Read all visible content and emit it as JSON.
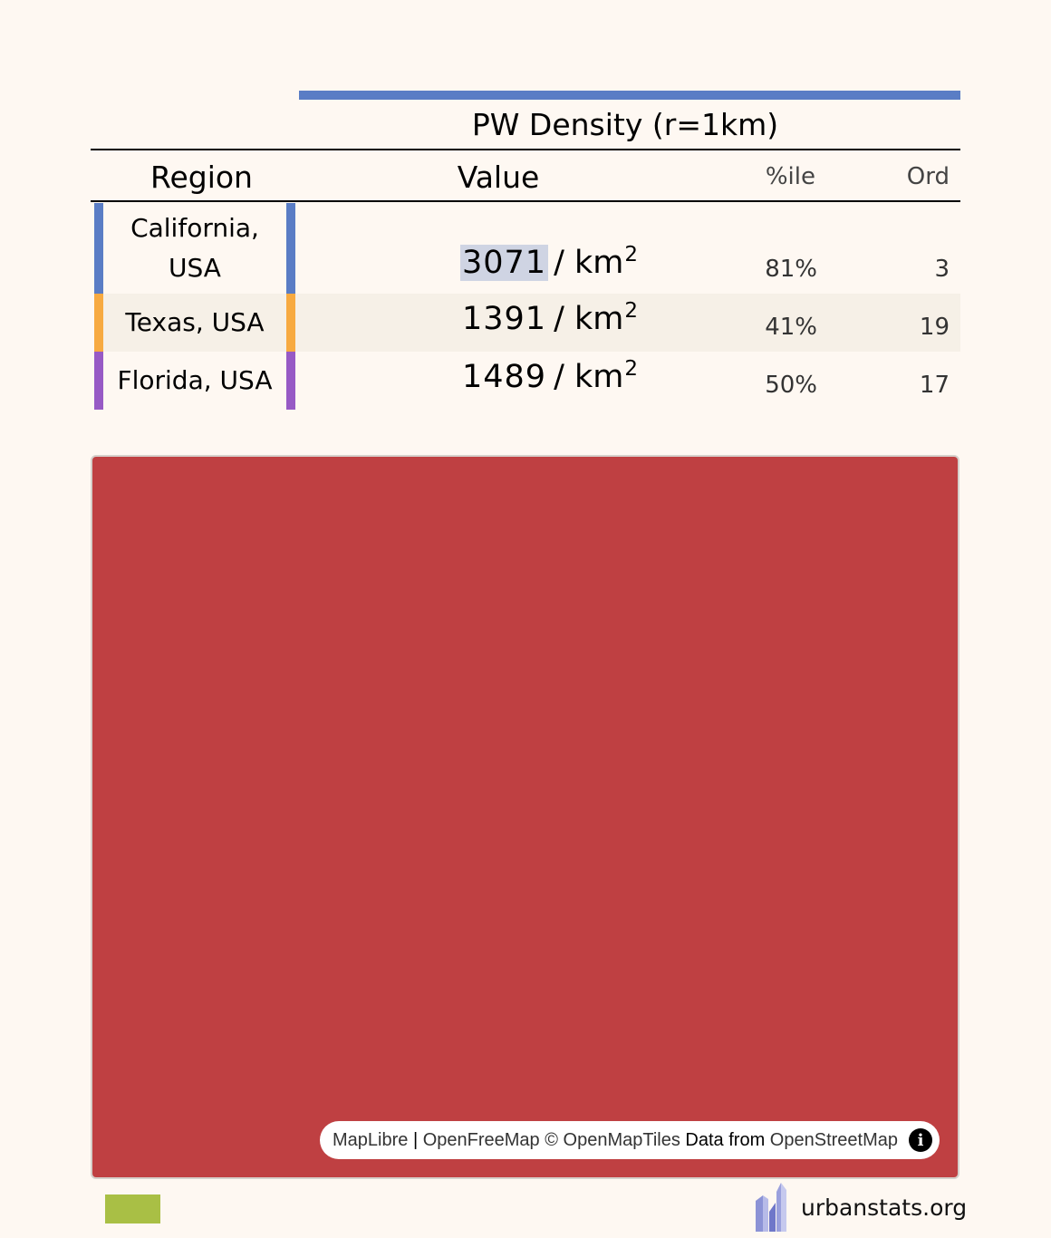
{
  "statistic": {
    "title": "PW Density (r=1km)",
    "bar_color": "#5a7dc5"
  },
  "headers": {
    "region": "Region",
    "value": "Value",
    "percentile": "%ile",
    "ordinal": "Ord"
  },
  "rows": [
    {
      "region_line1": "California,",
      "region_line2": "USA",
      "value": "3071",
      "unit": "/ km",
      "unit_exp": "2",
      "percentile": "81%",
      "ordinal": "3",
      "color": "#5a7dc5"
    },
    {
      "region": "Texas, USA",
      "value": "1391",
      "unit": "/ km",
      "unit_exp": "2",
      "percentile": "41%",
      "ordinal": "19",
      "color": "#f7aa41"
    },
    {
      "region": "Florida, USA",
      "value": "1489",
      "unit": "/ km",
      "unit_exp": "2",
      "percentile": "50%",
      "ordinal": "17",
      "color": "#975ac5"
    }
  ],
  "map": {
    "fill_color": "#bf4042",
    "attribution": {
      "maplibre": "MapLibre",
      "sep1": " | ",
      "openfreemap": "OpenFreeMap",
      "copyright": " © ",
      "openmaptiles": "OpenMapTiles",
      "data_from": " Data from ",
      "osm": "OpenStreetMap",
      "info_icon": "i"
    }
  },
  "legend": {
    "color": "#a9bf45"
  },
  "brand": {
    "name": "urbanstats.org",
    "logo_icon": "skyline-logo-icon"
  }
}
